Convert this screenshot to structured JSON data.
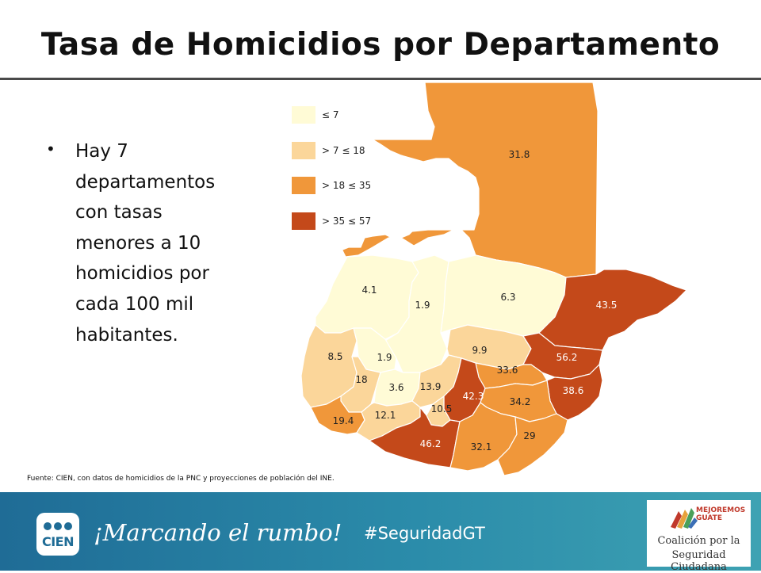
{
  "title": "Tasa de Homicidios por Departamento",
  "bullet": "Hay 7 departamentos con tasas menores a 10 homicidios por cada 100 mil habitantes.",
  "legend": [
    {
      "label": "≤ 7",
      "color": "#fffbd6"
    },
    {
      "label": "> 7 ≤ 18",
      "color": "#fbd69a"
    },
    {
      "label": "> 18  ≤ 35",
      "color": "#f0973a"
    },
    {
      "label": "> 35  ≤ 57",
      "color": "#c4491a"
    }
  ],
  "departments": [
    {
      "value": "31.8",
      "color": "#f0973a"
    },
    {
      "value": "4.1",
      "color": "#fffbd6"
    },
    {
      "value": "1.9",
      "color": "#fffbd6"
    },
    {
      "value": "6.3",
      "color": "#fffbd6"
    },
    {
      "value": "43.5",
      "color": "#c4491a"
    },
    {
      "value": "8.5",
      "color": "#fbd69a"
    },
    {
      "value": "1.9",
      "color": "#fffbd6"
    },
    {
      "value": "9.9",
      "color": "#fbd69a"
    },
    {
      "value": "56.2",
      "color": "#c4491a"
    },
    {
      "value": "33.6",
      "color": "#f0973a"
    },
    {
      "value": "18",
      "color": "#fbd69a"
    },
    {
      "value": "3.6",
      "color": "#fffbd6"
    },
    {
      "value": "13.9",
      "color": "#fbd69a"
    },
    {
      "value": "42.3",
      "color": "#c4491a"
    },
    {
      "value": "38.6",
      "color": "#c4491a"
    },
    {
      "value": "34.2",
      "color": "#f0973a"
    },
    {
      "value": "19.4",
      "color": "#f0973a"
    },
    {
      "value": "12.1",
      "color": "#fbd69a"
    },
    {
      "value": "10.5",
      "color": "#fbd69a"
    },
    {
      "value": "46.2",
      "color": "#c4491a"
    },
    {
      "value": "32.1",
      "color": "#f0973a"
    },
    {
      "value": "29",
      "color": "#f0973a"
    }
  ],
  "source": "Fuente: CIEN, con datos de homicidios de la PNC y proyecciones de población del INE.",
  "footer": {
    "logo_text": "CIEN",
    "slogan": "¡Marcando el rumbo!",
    "hashtag": "#SeguridadGT",
    "coalition_top1": "MEJOREMOS",
    "coalition_top2": "GUATE",
    "coalition_line1": "Coalición por la",
    "coalition_line2": "Seguridad Ciudadana"
  }
}
